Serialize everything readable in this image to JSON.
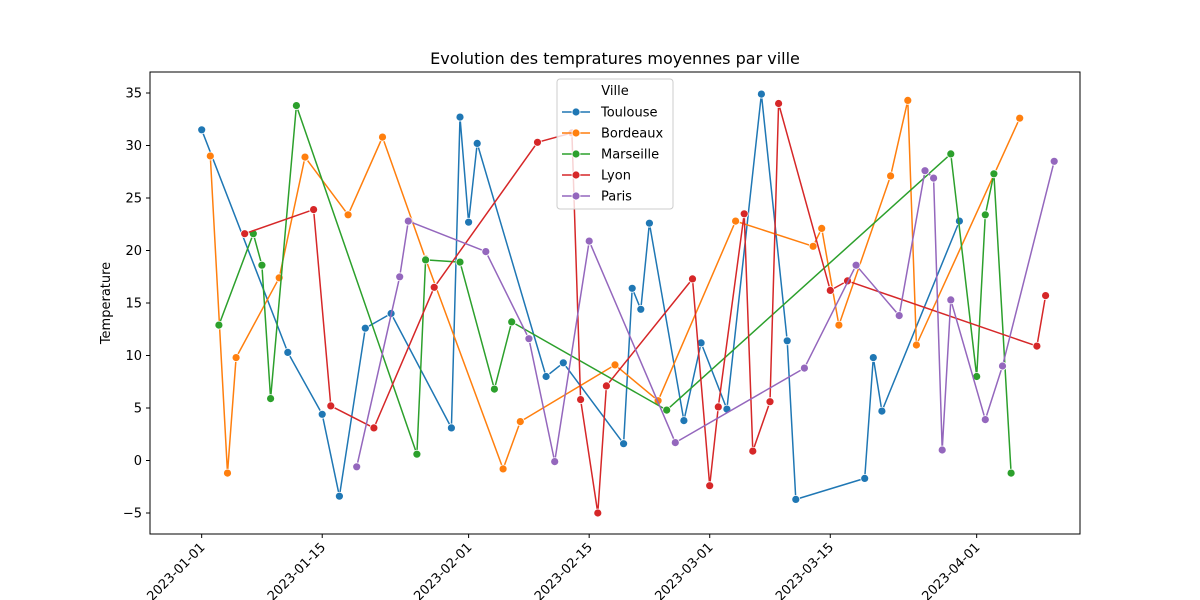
{
  "chart_data": {
    "type": "line",
    "title": "Evolution des tempratures moyennes  par ville",
    "xlabel": "",
    "ylabel": "Temperature",
    "x_ticks": [
      "2023-01-01",
      "2023-01-15",
      "2023-02-01",
      "2023-02-15",
      "2023-03-01",
      "2023-03-15",
      "2023-04-01"
    ],
    "y_ticks": [
      -5,
      0,
      5,
      10,
      15,
      20,
      25,
      30,
      35
    ],
    "xlim": [
      "2022-12-26",
      "2023-04-13"
    ],
    "ylim": [
      -7,
      37
    ],
    "grid": false,
    "legend": {
      "title": "Ville",
      "placement": "top-center"
    },
    "series": [
      {
        "name": "Toulouse",
        "color": "#1f77b4",
        "points": [
          [
            "2023-01-01",
            31.5
          ],
          [
            "2023-01-11",
            10.3
          ],
          [
            "2023-01-15",
            4.4
          ],
          [
            "2023-01-17",
            -3.4
          ],
          [
            "2023-01-20",
            12.6
          ],
          [
            "2023-01-23",
            14.0
          ],
          [
            "2023-01-30",
            3.1
          ],
          [
            "2023-01-31",
            32.7
          ],
          [
            "2023-02-01",
            22.7
          ],
          [
            "2023-02-02",
            30.2
          ],
          [
            "2023-02-10",
            8.0
          ],
          [
            "2023-02-12",
            9.3
          ],
          [
            "2023-02-19",
            1.6
          ],
          [
            "2023-02-20",
            16.4
          ],
          [
            "2023-02-21",
            14.4
          ],
          [
            "2023-02-22",
            22.6
          ],
          [
            "2023-02-26",
            3.8
          ],
          [
            "2023-02-28",
            11.2
          ],
          [
            "2023-03-03",
            4.9
          ],
          [
            "2023-03-07",
            34.9
          ],
          [
            "2023-03-10",
            11.4
          ],
          [
            "2023-03-11",
            -3.7
          ],
          [
            "2023-03-19",
            -1.7
          ],
          [
            "2023-03-20",
            9.8
          ],
          [
            "2023-03-21",
            4.7
          ],
          [
            "2023-03-30",
            22.8
          ]
        ]
      },
      {
        "name": "Bordeaux",
        "color": "#ff7f0e",
        "points": [
          [
            "2023-01-02",
            29.0
          ],
          [
            "2023-01-04",
            -1.2
          ],
          [
            "2023-01-05",
            9.8
          ],
          [
            "2023-01-10",
            17.4
          ],
          [
            "2023-01-13",
            28.9
          ],
          [
            "2023-01-18",
            23.4
          ],
          [
            "2023-01-22",
            30.8
          ],
          [
            "2023-01-27",
            19.2
          ],
          [
            "2023-02-05",
            -0.8
          ],
          [
            "2023-02-07",
            3.7
          ],
          [
            "2023-02-18",
            9.1
          ],
          [
            "2023-02-23",
            5.7
          ],
          [
            "2023-03-04",
            22.8
          ],
          [
            "2023-03-13",
            20.4
          ],
          [
            "2023-03-14",
            22.1
          ],
          [
            "2023-03-16",
            12.9
          ],
          [
            "2023-03-22",
            27.1
          ],
          [
            "2023-03-24",
            34.3
          ],
          [
            "2023-03-25",
            11.0
          ],
          [
            "2023-04-06",
            32.6
          ]
        ]
      },
      {
        "name": "Marseille",
        "color": "#2ca02c",
        "points": [
          [
            "2023-01-03",
            12.9
          ],
          [
            "2023-01-07",
            21.6
          ],
          [
            "2023-01-08",
            18.6
          ],
          [
            "2023-01-09",
            5.9
          ],
          [
            "2023-01-12",
            33.8
          ],
          [
            "2023-01-26",
            0.6
          ],
          [
            "2023-01-27",
            19.1
          ],
          [
            "2023-01-31",
            18.9
          ],
          [
            "2023-02-04",
            6.8
          ],
          [
            "2023-02-06",
            13.2
          ],
          [
            "2023-02-24",
            4.8
          ],
          [
            "2023-03-29",
            29.2
          ],
          [
            "2023-04-01",
            8.0
          ],
          [
            "2023-04-02",
            23.4
          ],
          [
            "2023-04-03",
            27.3
          ],
          [
            "2023-04-05",
            -1.2
          ]
        ]
      },
      {
        "name": "Lyon",
        "color": "#d62728",
        "points": [
          [
            "2023-01-06",
            21.6
          ],
          [
            "2023-01-14",
            23.9
          ],
          [
            "2023-01-16",
            5.2
          ],
          [
            "2023-01-21",
            3.1
          ],
          [
            "2023-01-28",
            16.5
          ],
          [
            "2023-02-09",
            30.3
          ],
          [
            "2023-02-13",
            31.2
          ],
          [
            "2023-02-14",
            5.8
          ],
          [
            "2023-02-16",
            -5.0
          ],
          [
            "2023-02-17",
            7.1
          ],
          [
            "2023-02-27",
            17.3
          ],
          [
            "2023-03-01",
            -2.4
          ],
          [
            "2023-03-02",
            5.1
          ],
          [
            "2023-03-05",
            23.5
          ],
          [
            "2023-03-06",
            0.9
          ],
          [
            "2023-03-08",
            5.6
          ],
          [
            "2023-03-09",
            34.0
          ],
          [
            "2023-03-15",
            16.2
          ],
          [
            "2023-03-17",
            17.1
          ],
          [
            "2023-04-08",
            10.9
          ],
          [
            "2023-04-09",
            15.7
          ]
        ]
      },
      {
        "name": "Paris",
        "color": "#9467bd",
        "points": [
          [
            "2023-01-19",
            -0.6
          ],
          [
            "2023-01-24",
            17.5
          ],
          [
            "2023-01-25",
            22.8
          ],
          [
            "2023-02-03",
            19.9
          ],
          [
            "2023-02-08",
            11.6
          ],
          [
            "2023-02-11",
            -0.1
          ],
          [
            "2023-02-15",
            20.9
          ],
          [
            "2023-02-25",
            1.7
          ],
          [
            "2023-03-12",
            8.8
          ],
          [
            "2023-03-18",
            18.6
          ],
          [
            "2023-03-23",
            13.8
          ],
          [
            "2023-03-26",
            27.6
          ],
          [
            "2023-03-27",
            26.9
          ],
          [
            "2023-03-28",
            1.0
          ],
          [
            "2023-03-29",
            15.3
          ],
          [
            "2023-04-02",
            3.9
          ],
          [
            "2023-04-04",
            9.0
          ],
          [
            "2023-04-10",
            28.5
          ]
        ]
      }
    ]
  }
}
